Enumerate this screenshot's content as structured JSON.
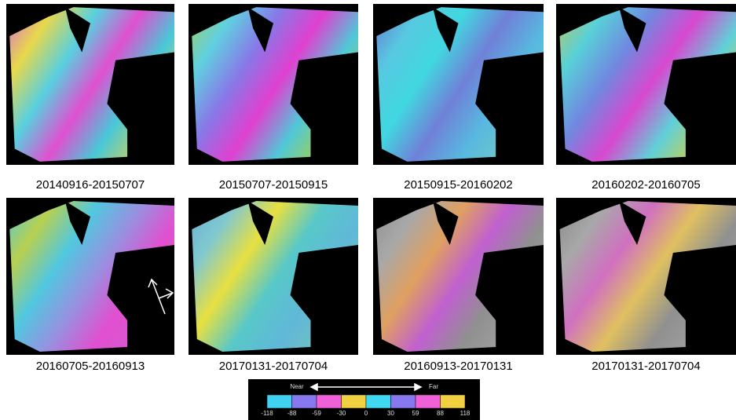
{
  "panels": [
    {
      "label": "20140916-20150707"
    },
    {
      "label": "20150707-20150915"
    },
    {
      "label": "20150915-20160202"
    },
    {
      "label": "20160202-20160705"
    },
    {
      "label": "20160705-20160913"
    },
    {
      "label": "20170131-20170704"
    },
    {
      "label": "20160913-20170131"
    },
    {
      "label": "20170131-20170704"
    }
  ],
  "colorbar": {
    "near": "Near",
    "far": "Far",
    "ticks": [
      -118,
      -88,
      -59,
      -30,
      0,
      30,
      59,
      88,
      118
    ]
  }
}
